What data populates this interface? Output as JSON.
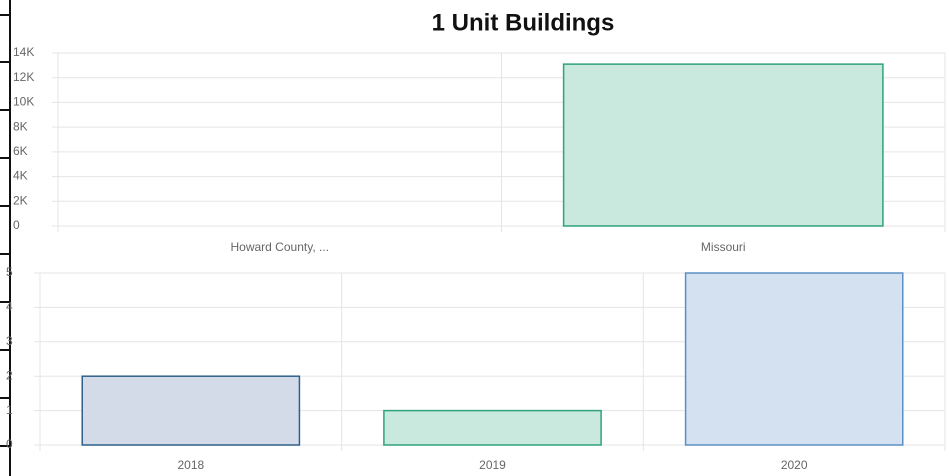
{
  "chart_data": [
    {
      "type": "bar",
      "title": "1 Unit Buildings",
      "categories": [
        "Howard County, ...",
        "Missouri"
      ],
      "values": [
        0,
        13100
      ],
      "colors": [
        "#d3dbe8",
        "#c9e9de"
      ],
      "border_colors": [
        "#2f5f8a",
        "#2ea37a"
      ],
      "ylim": [
        0,
        14000
      ],
      "yticks": [
        0,
        {
          "value": 2000,
          "label": "2K"
        },
        {
          "value": 4000,
          "label": "4K"
        },
        {
          "value": 6000,
          "label": "6K"
        },
        {
          "value": 8000,
          "label": "8K"
        },
        {
          "value": 10000,
          "label": "10K"
        },
        {
          "value": 12000,
          "label": "12K"
        },
        {
          "value": 14000,
          "label": "14K"
        }
      ],
      "grid": true
    },
    {
      "type": "bar",
      "categories": [
        "2018",
        "2019",
        "2020"
      ],
      "values": [
        2,
        1,
        5
      ],
      "colors": [
        "#d3dbe8",
        "#c9e9de",
        "#d3e1f1"
      ],
      "border_colors": [
        "#2f5f8a",
        "#2ea37a",
        "#5b8fc4"
      ],
      "ylim": [
        0,
        5
      ],
      "yticks": [
        0,
        1,
        2,
        3,
        4,
        5
      ],
      "grid": true
    }
  ]
}
